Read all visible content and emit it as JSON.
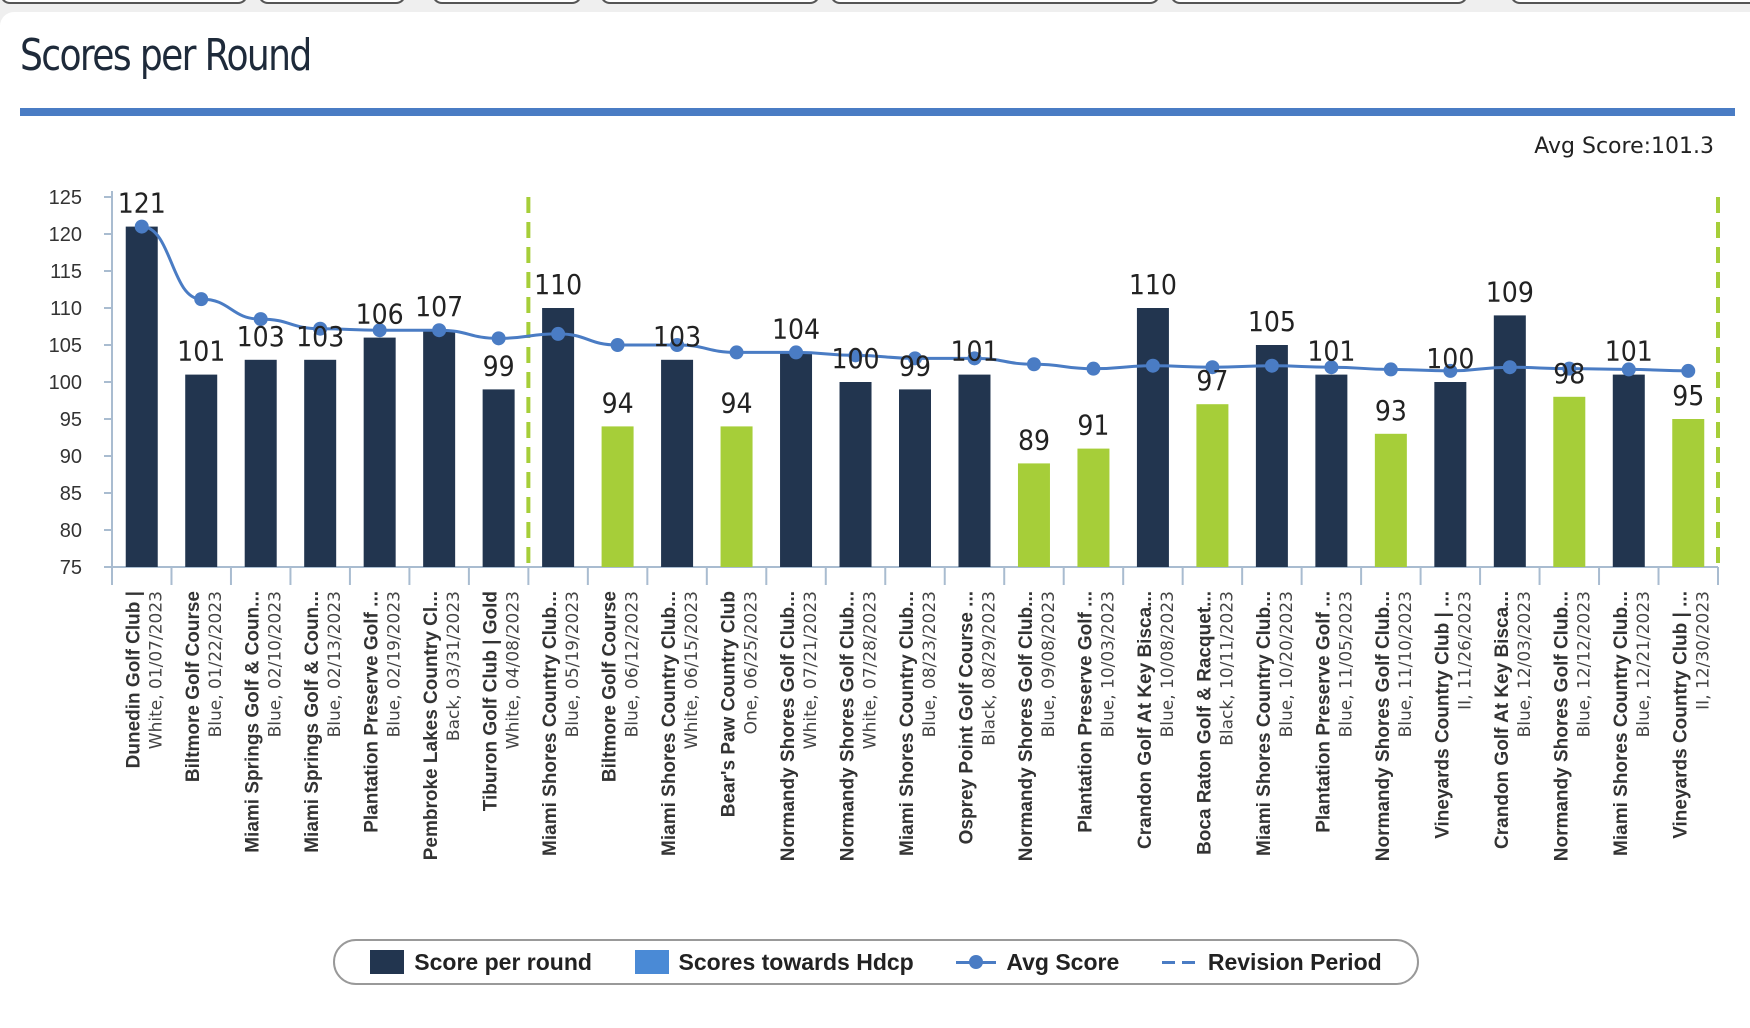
{
  "panel": {
    "title": "Scores per Round",
    "avg_label": "Avg Score:101.3"
  },
  "colors": {
    "score_bar": "#22354f",
    "hdcp_bar": "#a6ce39",
    "avg_line": "#4a7cc4",
    "revision_line": "#a6ce39",
    "accent": "#4a7cc4"
  },
  "legend": {
    "score_per_round": "Score per round",
    "scores_towards_hdcp": "Scores towards Hdcp",
    "avg_score": "Avg Score",
    "revision_period": "Revision Period"
  },
  "chart_data": {
    "type": "bar",
    "title": "Scores per Round",
    "ylim": [
      75,
      125
    ],
    "yticks": [
      75,
      80,
      85,
      90,
      95,
      100,
      105,
      110,
      115,
      120,
      125
    ],
    "categories": [
      {
        "name": "Dunedin Golf Club |",
        "sub": "White, 01/07/2023"
      },
      {
        "name": "Biltmore Golf Course",
        "sub": "Blue, 01/22/2023"
      },
      {
        "name": "Miami Springs Golf & Coun...",
        "sub": "Blue, 02/10/2023"
      },
      {
        "name": "Miami Springs Golf & Coun...",
        "sub": "Blue, 02/13/2023"
      },
      {
        "name": "Plantation Preserve Golf ...",
        "sub": "Blue, 02/19/2023"
      },
      {
        "name": "Pembroke Lakes Country Cl...",
        "sub": "Back, 03/31/2023"
      },
      {
        "name": "Tiburon Golf Club | Gold",
        "sub": "White, 04/08/2023"
      },
      {
        "name": "Miami Shores Country Club...",
        "sub": "Blue, 05/19/2023"
      },
      {
        "name": "Biltmore Golf Course",
        "sub": "Blue, 06/12/2023"
      },
      {
        "name": "Miami Shores Country Club...",
        "sub": "White, 06/15/2023"
      },
      {
        "name": "Bear's Paw Country Club",
        "sub": "One, 06/25/2023"
      },
      {
        "name": "Normandy Shores Golf Club...",
        "sub": "White, 07/21/2023"
      },
      {
        "name": "Normandy Shores Golf Club...",
        "sub": "White, 07/28/2023"
      },
      {
        "name": "Miami Shores Country Club...",
        "sub": "Blue, 08/23/2023"
      },
      {
        "name": "Osprey Point Golf Course ...",
        "sub": "Black, 08/29/2023"
      },
      {
        "name": "Normandy Shores Golf Club...",
        "sub": "Blue, 09/08/2023"
      },
      {
        "name": "Plantation Preserve Golf ...",
        "sub": "Blue, 10/03/2023"
      },
      {
        "name": "Crandon Golf At Key Bisca...",
        "sub": "Blue, 10/08/2023"
      },
      {
        "name": "Boca Raton Golf & Racquet...",
        "sub": "Black, 10/11/2023"
      },
      {
        "name": "Miami Shores Country Club...",
        "sub": "Blue, 10/20/2023"
      },
      {
        "name": "Plantation Preserve Golf ...",
        "sub": "Blue, 11/05/2023"
      },
      {
        "name": "Normandy Shores Golf Club...",
        "sub": "Blue, 11/10/2023"
      },
      {
        "name": "Vineyards Country Club | ...",
        "sub": "II, 11/26/2023"
      },
      {
        "name": "Crandon Golf At Key Bisca...",
        "sub": "Blue, 12/03/2023"
      },
      {
        "name": "Normandy Shores Golf Club...",
        "sub": "Blue, 12/12/2023"
      },
      {
        "name": "Miami Shores Country Club...",
        "sub": "Blue, 12/21/2023"
      },
      {
        "name": "Vineyards Country Club | ...",
        "sub": "II, 12/30/2023"
      }
    ],
    "values": [
      121,
      101,
      103,
      103,
      106,
      107,
      99,
      110,
      94,
      103,
      94,
      104,
      100,
      99,
      101,
      89,
      91,
      110,
      97,
      105,
      101,
      93,
      100,
      109,
      98,
      101,
      95
    ],
    "towards_hdcp": [
      false,
      false,
      false,
      false,
      false,
      false,
      false,
      false,
      true,
      false,
      true,
      false,
      false,
      false,
      false,
      true,
      true,
      false,
      true,
      false,
      false,
      true,
      false,
      false,
      true,
      false,
      true
    ],
    "avg_score": [
      121,
      111.2,
      108.5,
      107.2,
      107,
      107,
      105.9,
      106.5,
      105,
      105,
      104,
      104,
      103.6,
      103.2,
      103.2,
      102.4,
      101.8,
      102.2,
      102,
      102.2,
      102,
      101.7,
      101.5,
      102,
      101.8,
      101.7,
      101.5
    ],
    "revision_after_index": [
      6,
      26
    ]
  }
}
